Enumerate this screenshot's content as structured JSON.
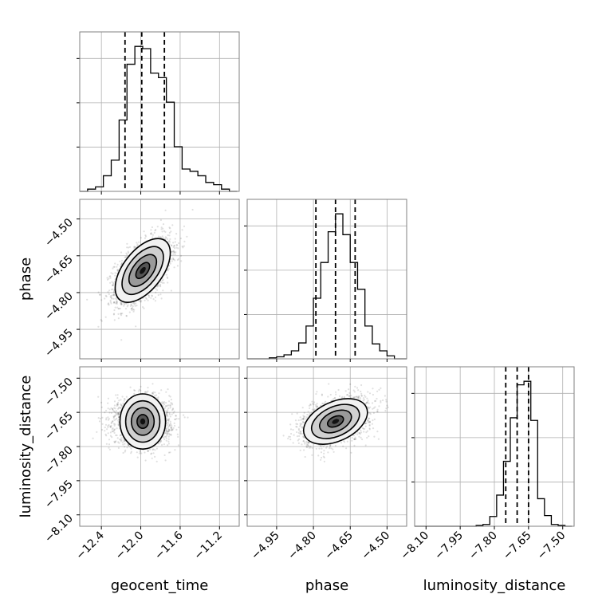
{
  "chart_data": {
    "type": "corner",
    "parameters": [
      {
        "name": "geocent_time",
        "label": "geocent_time",
        "range": [
          -12.62,
          -11.0
        ],
        "ticks": [
          -12.4,
          -12.0,
          -11.6,
          -11.2
        ],
        "tick_labels": [
          "−12.4",
          "−12.0",
          "−11.6",
          "−11.2"
        ],
        "mean": -11.98,
        "sd": 0.14,
        "quantiles": [
          -12.16,
          -11.99,
          -11.76
        ],
        "hist_edges": [
          -12.62,
          -12.54,
          -12.46,
          -12.38,
          -12.3,
          -12.22,
          -12.14,
          -12.06,
          -11.98,
          -11.9,
          -11.82,
          -11.74,
          -11.66,
          -11.58,
          -11.5,
          -11.42,
          -11.34,
          -11.26,
          -11.18,
          -11.1,
          -11.02
        ],
        "hist_counts": [
          0,
          1,
          2,
          7,
          14,
          32,
          57,
          65,
          64,
          53,
          51,
          40,
          20,
          10,
          9,
          7,
          4,
          3,
          1,
          0
        ]
      },
      {
        "name": "phase",
        "label": "phase",
        "range": [
          -5.07,
          -4.42
        ],
        "ticks": [
          -4.95,
          -4.8,
          -4.65,
          -4.5
        ],
        "tick_labels": [
          "−4.95",
          "−4.80",
          "−4.65",
          "−4.50"
        ],
        "mean": -4.71,
        "sd": 0.065,
        "quantiles": [
          -4.79,
          -4.71,
          -4.63
        ],
        "hist_edges": [
          -5.07,
          -5.04,
          -5.01,
          -4.98,
          -4.95,
          -4.92,
          -4.89,
          -4.86,
          -4.83,
          -4.8,
          -4.77,
          -4.74,
          -4.71,
          -4.68,
          -4.65,
          -4.62,
          -4.59,
          -4.56,
          -4.53,
          -4.5,
          -4.47,
          -4.44,
          -4.42
        ],
        "hist_counts": [
          0,
          0,
          0,
          1,
          2,
          4,
          8,
          16,
          33,
          61,
          97,
          128,
          146,
          125,
          97,
          70,
          33,
          15,
          8,
          3,
          0,
          0
        ]
      },
      {
        "name": "luminosity_distance",
        "label": "luminosity_distance",
        "range": [
          -8.15,
          -7.45
        ],
        "ticks": [
          -8.1,
          -7.95,
          -7.8,
          -7.65,
          -7.5
        ],
        "tick_labels": [
          "−8.10",
          "−7.95",
          "−7.80",
          "−7.65",
          "−7.50"
        ],
        "mean": -7.69,
        "sd": 0.05,
        "quantiles": [
          -7.75,
          -7.7,
          -7.65
        ],
        "hist_edges": [
          -8.15,
          -8.12,
          -8.09,
          -8.06,
          -8.03,
          -8.0,
          -7.97,
          -7.94,
          -7.91,
          -7.88,
          -7.85,
          -7.82,
          -7.79,
          -7.76,
          -7.73,
          -7.7,
          -7.67,
          -7.64,
          -7.61,
          -7.58,
          -7.55,
          -7.52,
          -7.49,
          -7.46
        ],
        "hist_counts": [
          0,
          0,
          0,
          0,
          0,
          0,
          0,
          0,
          0,
          1,
          2,
          11,
          35,
          73,
          122,
          159,
          163,
          119,
          31,
          12,
          2,
          1,
          0
        ]
      }
    ],
    "correlations": [
      {
        "x": "geocent_time",
        "y": "phase",
        "rho": 0.55
      },
      {
        "x": "geocent_time",
        "y": "luminosity_distance",
        "rho": 0.0
      },
      {
        "x": "phase",
        "y": "luminosity_distance",
        "rho": 0.4
      }
    ],
    "samples_per_panel": 2500,
    "contour_levels_sigma": [
      0.5,
      1.0,
      1.5,
      2.0
    ],
    "grid": true
  }
}
